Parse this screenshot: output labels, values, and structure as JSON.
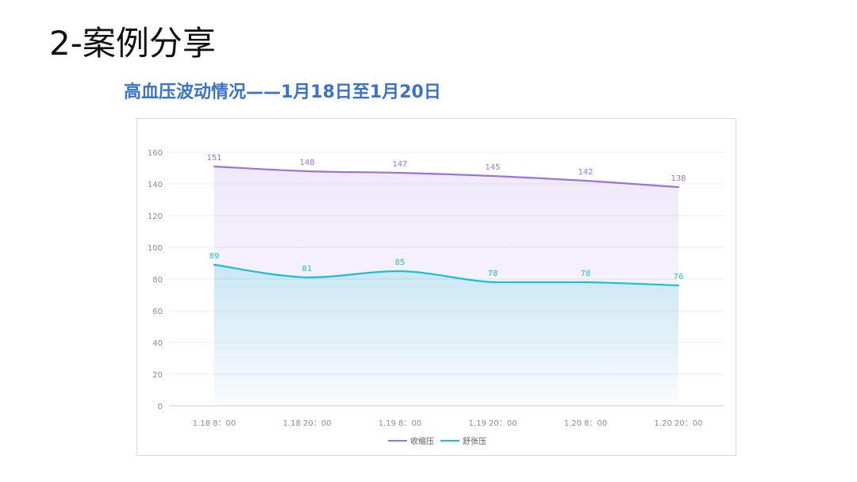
{
  "page": {
    "title": "2-案例分享",
    "subtitle": "高血压波动情况——1月18日至1月20日"
  },
  "colors": {
    "systolic": "#9b72e0",
    "diastolic": "#1bbfd3",
    "title_blue": "#3a73c9"
  },
  "chart_data": {
    "type": "line",
    "title": "高血压波动情况——1月18日至1月20日",
    "categories": [
      "1.18 8：00",
      "1.18 20：00",
      "1.19 8：00",
      "1.19 20：00",
      "1.20 8：00",
      "1.20 20：00"
    ],
    "series": [
      {
        "name": "收缩压",
        "values": [
          151,
          148,
          147,
          145,
          142,
          138
        ],
        "color": "#9b72e0"
      },
      {
        "name": "舒张压",
        "values": [
          89,
          81,
          85,
          78,
          78,
          76
        ],
        "color": "#1bbfd3"
      }
    ],
    "yticks": [
      "0",
      "20",
      "40",
      "60",
      "80",
      "100",
      "120",
      "140",
      "160"
    ],
    "ylim": [
      0,
      160
    ],
    "grid": true,
    "legend": "bottom-center",
    "smooth": true,
    "area_fill": true
  }
}
